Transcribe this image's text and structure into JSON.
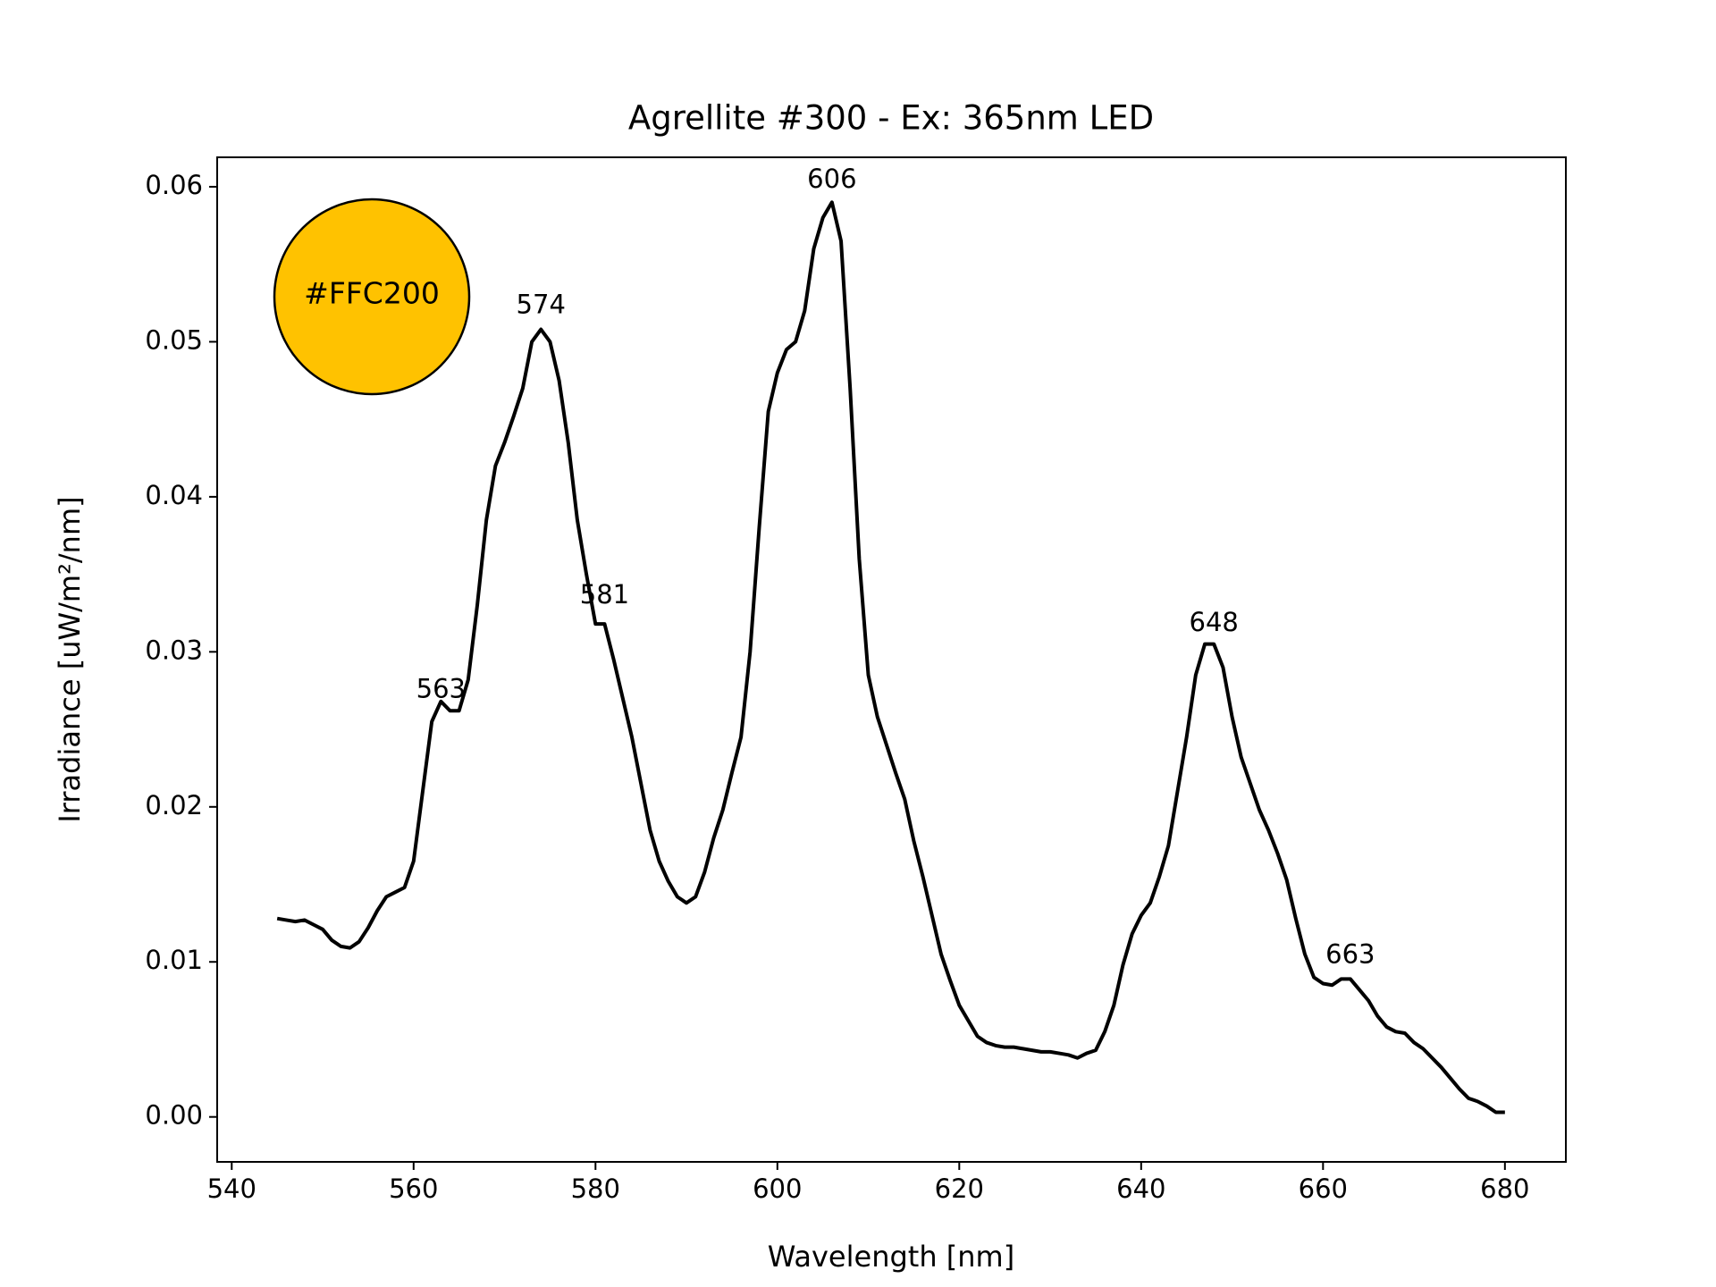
{
  "chart_data": {
    "type": "line",
    "title": "Agrellite #300 - Ex: 365nm LED",
    "x_label": "Wavelength [nm]",
    "y_label": "Irradiance [uW/m²/nm]",
    "xlim": [
      538.4,
      686.7
    ],
    "ylim": [
      -0.0029,
      0.0619
    ],
    "xticks": [
      540,
      560,
      580,
      600,
      620,
      640,
      660,
      680
    ],
    "yticks": [
      {
        "value": 0,
        "label": "0.00"
      },
      {
        "value": 0.01,
        "label": "0.01"
      },
      {
        "value": 0.02,
        "label": "0.02"
      },
      {
        "value": 0.03,
        "label": "0.03"
      },
      {
        "value": 0.04,
        "label": "0.04"
      },
      {
        "value": 0.05,
        "label": "0.05"
      },
      {
        "value": 0.06,
        "label": "0.06"
      }
    ],
    "x": [
      545,
      546,
      547,
      548,
      549,
      550,
      551,
      552,
      553,
      554,
      555,
      556,
      557,
      558,
      559,
      560,
      561,
      562,
      563,
      564,
      565,
      566,
      567,
      568,
      569,
      570,
      571,
      572,
      573,
      574,
      575,
      576,
      577,
      578,
      579,
      580,
      581,
      582,
      583,
      584,
      585,
      586,
      587,
      588,
      589,
      590,
      591,
      592,
      593,
      594,
      595,
      596,
      597,
      598,
      599,
      600,
      601,
      602,
      603,
      604,
      605,
      606,
      607,
      608,
      609,
      610,
      611,
      612,
      613,
      614,
      615,
      616,
      617,
      618,
      619,
      620,
      621,
      622,
      623,
      624,
      625,
      626,
      627,
      628,
      629,
      630,
      631,
      632,
      633,
      634,
      635,
      636,
      637,
      638,
      639,
      640,
      641,
      642,
      643,
      644,
      645,
      646,
      647,
      648,
      649,
      650,
      651,
      652,
      653,
      654,
      655,
      656,
      657,
      658,
      659,
      660,
      661,
      662,
      663,
      664,
      665,
      666,
      667,
      668,
      669,
      670,
      671,
      672,
      673,
      674,
      675,
      676,
      677,
      678,
      679,
      680
    ],
    "series": [
      {
        "color": "#000000",
        "values": [
          0.0128,
          0.0127,
          0.0126,
          0.0127,
          0.0124,
          0.0121,
          0.0114,
          0.011,
          0.0109,
          0.0113,
          0.0122,
          0.0133,
          0.0142,
          0.0145,
          0.0148,
          0.0165,
          0.021,
          0.0255,
          0.0268,
          0.0262,
          0.0262,
          0.0282,
          0.033,
          0.0385,
          0.042,
          0.0435,
          0.0452,
          0.047,
          0.05,
          0.0508,
          0.05,
          0.0475,
          0.0435,
          0.0385,
          0.035,
          0.0318,
          0.0318,
          0.0295,
          0.027,
          0.0245,
          0.0215,
          0.0185,
          0.0165,
          0.0152,
          0.0142,
          0.0138,
          0.0142,
          0.0158,
          0.018,
          0.0198,
          0.0222,
          0.0245,
          0.03,
          0.038,
          0.0455,
          0.048,
          0.0495,
          0.05,
          0.052,
          0.056,
          0.058,
          0.059,
          0.0565,
          0.047,
          0.036,
          0.0285,
          0.0258,
          0.024,
          0.0222,
          0.0205,
          0.0178,
          0.0155,
          0.013,
          0.0105,
          0.0088,
          0.0072,
          0.0062,
          0.0052,
          0.0048,
          0.0046,
          0.0045,
          0.0045,
          0.0044,
          0.0043,
          0.0042,
          0.0042,
          0.0041,
          0.004,
          0.0038,
          0.0041,
          0.0043,
          0.0055,
          0.0072,
          0.0098,
          0.0118,
          0.013,
          0.0138,
          0.0155,
          0.0175,
          0.021,
          0.0245,
          0.0285,
          0.0305,
          0.0305,
          0.029,
          0.0258,
          0.0232,
          0.0215,
          0.0198,
          0.0185,
          0.017,
          0.0153,
          0.0128,
          0.0105,
          0.009,
          0.0086,
          0.0085,
          0.0089,
          0.0089,
          0.0082,
          0.0075,
          0.0065,
          0.0058,
          0.0055,
          0.0054,
          0.0048,
          0.0044,
          0.0038,
          0.0032,
          0.0025,
          0.0018,
          0.0012,
          0.001,
          0.0007,
          0.0003,
          0.0003
        ]
      }
    ],
    "annotations": [
      {
        "text": "563",
        "x": 563,
        "y": 0.0275
      },
      {
        "text": "574",
        "x": 574,
        "y": 0.0523
      },
      {
        "text": "581",
        "x": 581,
        "y": 0.0336
      },
      {
        "text": "606",
        "x": 606,
        "y": 0.0604
      },
      {
        "text": "648",
        "x": 648,
        "y": 0.0318
      },
      {
        "text": "663",
        "x": 663,
        "y": 0.0104
      }
    ],
    "swatch": {
      "label": "#FFC200",
      "color": "#ffc200"
    }
  }
}
